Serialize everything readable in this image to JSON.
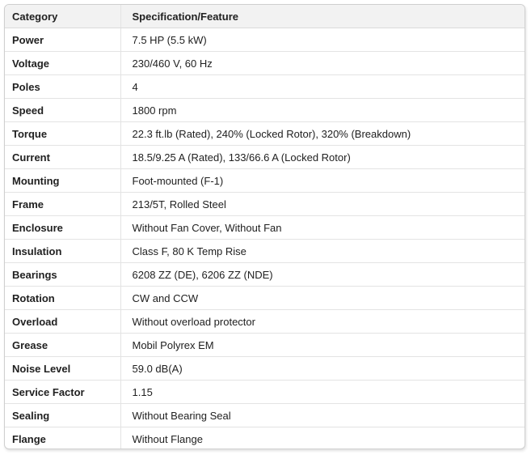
{
  "table": {
    "headers": [
      "Category",
      "Specification/Feature"
    ],
    "rows": [
      [
        "Power",
        "7.5 HP (5.5 kW)"
      ],
      [
        "Voltage",
        "230/460 V, 60 Hz"
      ],
      [
        "Poles",
        "4"
      ],
      [
        "Speed",
        "1800 rpm"
      ],
      [
        "Torque",
        "22.3 ft.lb (Rated), 240% (Locked Rotor), 320% (Breakdown)"
      ],
      [
        "Current",
        "18.5/9.25 A (Rated), 133/66.6 A (Locked Rotor)"
      ],
      [
        "Mounting",
        "Foot-mounted (F-1)"
      ],
      [
        "Frame",
        "213/5T, Rolled Steel"
      ],
      [
        "Enclosure",
        "Without Fan Cover, Without Fan"
      ],
      [
        "Insulation",
        "Class F, 80 K Temp Rise"
      ],
      [
        "Bearings",
        "6208 ZZ (DE), 6206 ZZ (NDE)"
      ],
      [
        "Rotation",
        "CW and CCW"
      ],
      [
        "Overload",
        "Without overload protector"
      ],
      [
        "Grease",
        "Mobil Polyrex EM"
      ],
      [
        "Noise Level",
        "59.0 dB(A)"
      ],
      [
        "Service Factor",
        "1.15"
      ],
      [
        "Sealing",
        "Without Bearing Seal"
      ],
      [
        "Flange",
        "Without Flange"
      ]
    ],
    "colors": {
      "header_bg": "#f2f2f2",
      "outer_border": "#cfcfcf",
      "inner_border": "#e3e3e3",
      "text": "#212121"
    }
  }
}
